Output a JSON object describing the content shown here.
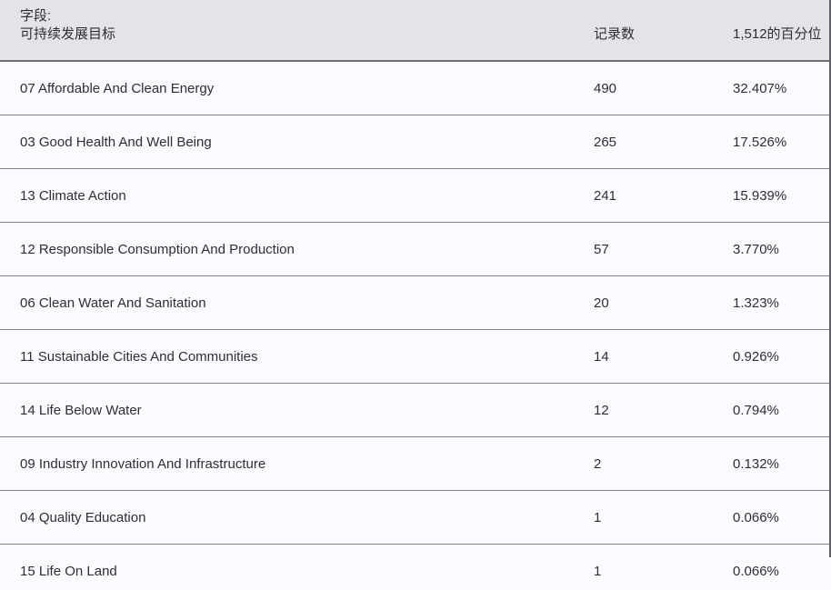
{
  "header": {
    "field_label": "字段:",
    "field_value": "可持续发展目标",
    "records_label": "记录数",
    "percentile_label": "1,512的百分位"
  },
  "rows": [
    {
      "label": "07 Affordable And Clean Energy",
      "records": "490",
      "percent": "32.407%"
    },
    {
      "label": "03 Good Health And Well Being",
      "records": "265",
      "percent": "17.526%"
    },
    {
      "label": "13 Climate Action",
      "records": "241",
      "percent": "15.939%"
    },
    {
      "label": "12 Responsible Consumption And Production",
      "records": "57",
      "percent": "3.770%"
    },
    {
      "label": "06 Clean Water And Sanitation",
      "records": "20",
      "percent": "1.323%"
    },
    {
      "label": "11 Sustainable Cities And Communities",
      "records": "14",
      "percent": "0.926%"
    },
    {
      "label": "14 Life Below Water",
      "records": "12",
      "percent": "0.794%"
    },
    {
      "label": "09 Industry Innovation And Infrastructure",
      "records": "2",
      "percent": "0.132%"
    },
    {
      "label": "04 Quality Education",
      "records": "1",
      "percent": "0.066%"
    },
    {
      "label": "15 Life On Land",
      "records": "1",
      "percent": "0.066%"
    }
  ],
  "colors": {
    "header_bg": "#e5e3ea",
    "row_bg": "#fdfaff",
    "header_border": "#6f6c75",
    "row_separator": "#85828b",
    "scrollbar": "#615e67",
    "text": "#2f2d35"
  }
}
